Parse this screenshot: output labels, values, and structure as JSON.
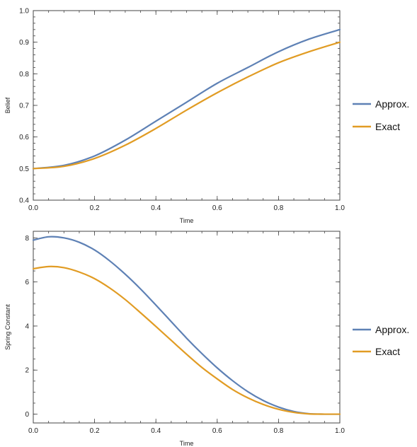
{
  "chart_data": [
    {
      "type": "line",
      "title": "",
      "xlabel": "Time",
      "ylabel": "Belief",
      "xlim": [
        0,
        1
      ],
      "ylim": [
        0.4,
        1.0
      ],
      "xticks": [
        0,
        0.2,
        0.4,
        0.6,
        0.8,
        1
      ],
      "xtick_labels": [
        "0.0",
        "0.2",
        "0.4",
        "0.6",
        "0.8",
        "1.0"
      ],
      "yticks": [
        0.4,
        0.5,
        0.6,
        0.7,
        0.8,
        0.9,
        1.0
      ],
      "ytick_labels": [
        "0.4",
        "0.5",
        "0.6",
        "0.7",
        "0.8",
        "0.9",
        "1.0"
      ],
      "grid": false,
      "legend_position": "right",
      "x": [
        0,
        0.1,
        0.2,
        0.3,
        0.4,
        0.5,
        0.6,
        0.7,
        0.8,
        0.9,
        1.0
      ],
      "series": [
        {
          "name": "Approx.",
          "color": "#5e81b5",
          "values": [
            0.5,
            0.51,
            0.54,
            0.59,
            0.65,
            0.71,
            0.77,
            0.82,
            0.87,
            0.91,
            0.94
          ]
        },
        {
          "name": "Exact",
          "color": "#e19c24",
          "values": [
            0.5,
            0.507,
            0.532,
            0.574,
            0.627,
            0.685,
            0.74,
            0.79,
            0.835,
            0.87,
            0.9
          ]
        }
      ]
    },
    {
      "type": "line",
      "title": "",
      "xlabel": "Time",
      "ylabel": "Spring Constant",
      "xlim": [
        0,
        1
      ],
      "ylim": [
        -0.4,
        8.3
      ],
      "xticks": [
        0,
        0.2,
        0.4,
        0.6,
        0.8,
        1
      ],
      "xtick_labels": [
        "0.0",
        "0.2",
        "0.4",
        "0.6",
        "0.8",
        "1.0"
      ],
      "yticks": [
        0,
        2,
        4,
        6,
        8
      ],
      "ytick_labels": [
        "0",
        "2",
        "4",
        "6",
        "8"
      ],
      "grid": false,
      "legend_position": "right",
      "x": [
        0,
        0.05,
        0.1,
        0.15,
        0.2,
        0.25,
        0.3,
        0.35,
        0.4,
        0.45,
        0.5,
        0.55,
        0.6,
        0.65,
        0.7,
        0.75,
        0.8,
        0.85,
        0.9,
        0.95,
        1.0
      ],
      "series": [
        {
          "name": "Approx.",
          "color": "#5e81b5",
          "values": [
            7.9,
            8.05,
            8.0,
            7.8,
            7.45,
            6.95,
            6.35,
            5.68,
            4.95,
            4.2,
            3.45,
            2.75,
            2.1,
            1.52,
            1.02,
            0.62,
            0.32,
            0.12,
            0.02,
            0.0,
            0.0
          ]
        },
        {
          "name": "Exact",
          "color": "#e19c24",
          "values": [
            6.6,
            6.7,
            6.65,
            6.45,
            6.15,
            5.72,
            5.2,
            4.6,
            3.98,
            3.35,
            2.72,
            2.12,
            1.6,
            1.12,
            0.74,
            0.44,
            0.22,
            0.08,
            0.01,
            0.0,
            0.0
          ]
        }
      ]
    }
  ]
}
